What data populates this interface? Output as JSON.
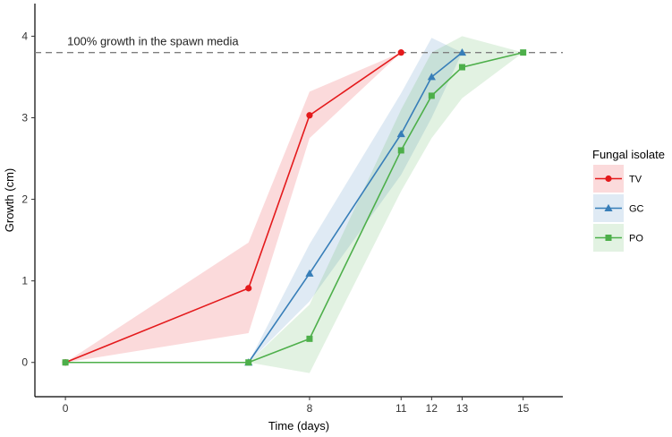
{
  "chart_data": {
    "type": "line",
    "xlabel": "Time (days)",
    "ylabel": "Growth (cm)",
    "xlim": [
      -1,
      16.3
    ],
    "ylim": [
      -0.42,
      4.4
    ],
    "x_ticks": [
      0,
      8,
      11,
      12,
      13,
      15
    ],
    "y_ticks": [
      0,
      1,
      2,
      3,
      4
    ],
    "reference_line": {
      "y": 3.8,
      "style": "dashed",
      "color": "#7f7f7f"
    },
    "annotation": "100% growth in the spawn media",
    "legend": {
      "title": "Fungal isolate",
      "position": "right"
    },
    "series": [
      {
        "name": "TV",
        "color": "#e41a1c",
        "marker": "circle",
        "x": [
          0,
          6,
          8,
          11
        ],
        "y": [
          0,
          0.91,
          3.03,
          3.8
        ],
        "ribbon_low": [
          0,
          0.36,
          2.75,
          3.8
        ],
        "ribbon_high": [
          0,
          1.47,
          3.32,
          3.8
        ]
      },
      {
        "name": "GC",
        "color": "#377eb8",
        "marker": "triangle",
        "x": [
          6,
          8,
          11,
          12,
          13
        ],
        "y": [
          0,
          1.09,
          2.8,
          3.5,
          3.8
        ],
        "ribbon_low": [
          0,
          0.75,
          2.3,
          3.0,
          3.8
        ],
        "ribbon_high": [
          0,
          1.45,
          3.3,
          3.98,
          3.8
        ]
      },
      {
        "name": "PO",
        "color": "#4daf4a",
        "marker": "square",
        "x": [
          0,
          6,
          8,
          11,
          12,
          13,
          15
        ],
        "y": [
          0,
          0,
          0.29,
          2.6,
          3.27,
          3.62,
          3.8
        ],
        "ribbon_low": [
          0,
          0,
          -0.13,
          2.1,
          2.75,
          3.24,
          3.8
        ],
        "ribbon_high": [
          0,
          0,
          0.71,
          3.1,
          3.8,
          4.0,
          3.8
        ]
      }
    ]
  }
}
